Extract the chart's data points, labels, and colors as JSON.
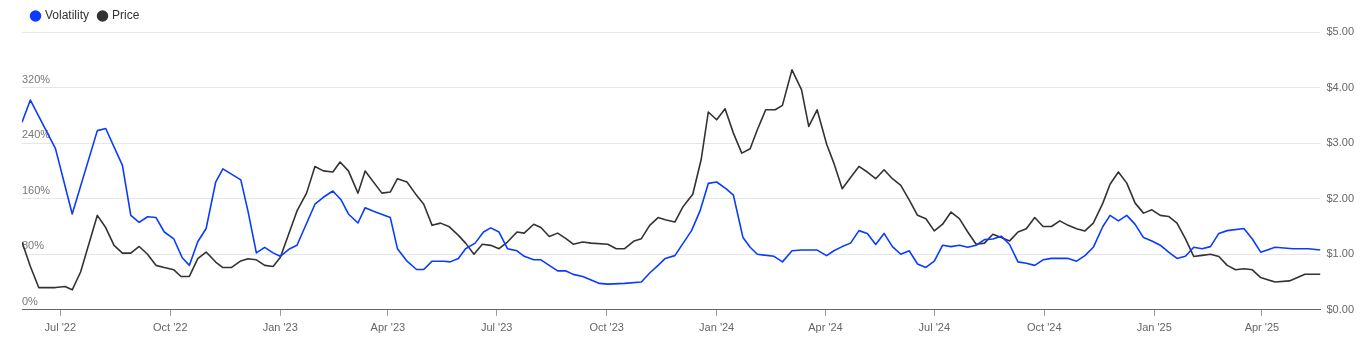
{
  "chart_data": {
    "type": "line",
    "xlim": [
      "2022-05-30",
      "2025-05-20"
    ],
    "xticks": [
      {
        "value": "2022-07-01",
        "label": "Jul '22"
      },
      {
        "value": "2022-10-01",
        "label": "Oct '22"
      },
      {
        "value": "2023-01-01",
        "label": "Jan '23"
      },
      {
        "value": "2023-04-01",
        "label": "Apr '23"
      },
      {
        "value": "2023-07-01",
        "label": "Jul '23"
      },
      {
        "value": "2023-10-01",
        "label": "Oct '23"
      },
      {
        "value": "2024-01-01",
        "label": "Jan '24"
      },
      {
        "value": "2024-04-01",
        "label": "Apr '24"
      },
      {
        "value": "2024-07-01",
        "label": "Jul '24"
      },
      {
        "value": "2024-10-01",
        "label": "Oct '24"
      },
      {
        "value": "2025-01-01",
        "label": "Jan '25"
      },
      {
        "value": "2025-04-01",
        "label": "Apr '25"
      }
    ],
    "ylim": [
      0,
      400
    ],
    "yticks": [
      {
        "value": 0,
        "label": "0%"
      },
      {
        "value": 80,
        "label": "80%"
      },
      {
        "value": 160,
        "label": "160%"
      },
      {
        "value": 240,
        "label": "240%"
      },
      {
        "value": 320,
        "label": "320%"
      }
    ],
    "y2lim": [
      0,
      5
    ],
    "y2ticks": [
      {
        "value": 0,
        "label": "$0.00"
      },
      {
        "value": 1,
        "label": "$1.00"
      },
      {
        "value": 2,
        "label": "$2.00"
      },
      {
        "value": 3,
        "label": "$3.00"
      },
      {
        "value": 4,
        "label": "$4.00"
      },
      {
        "value": 5,
        "label": "$5.00"
      }
    ],
    "grid": "y",
    "legend": "top left",
    "marker": "none",
    "line_style": "solid",
    "series": [
      {
        "name": "Volatility",
        "color": "#0a3cff",
        "x": [
          "2022-05-30",
          "2022-06-06",
          "2022-06-27",
          "2022-07-11",
          "2022-08-01",
          "2022-08-08",
          "2022-08-22",
          "2022-08-29",
          "2022-09-05",
          "2022-09-12",
          "2022-09-19",
          "2022-09-26",
          "2022-10-04",
          "2022-10-11",
          "2022-10-17",
          "2022-10-24",
          "2022-10-31",
          "2022-11-08",
          "2022-11-14",
          "2022-11-29",
          "2022-12-05",
          "2022-12-12",
          "2022-12-19",
          "2022-12-26",
          "2023-01-01",
          "2023-01-09",
          "2023-01-15",
          "2023-01-30",
          "2023-02-06",
          "2023-02-14",
          "2023-02-21",
          "2023-02-27",
          "2023-03-07",
          "2023-03-13",
          "2023-03-20",
          "2023-04-03",
          "2023-04-09",
          "2023-04-17",
          "2023-04-25",
          "2023-05-01",
          "2023-05-08",
          "2023-05-18",
          "2023-05-23",
          "2023-05-30",
          "2023-06-05",
          "2023-06-13",
          "2023-06-20",
          "2023-06-26",
          "2023-07-03",
          "2023-07-10",
          "2023-07-18",
          "2023-07-24",
          "2023-08-01",
          "2023-08-07",
          "2023-08-14",
          "2023-08-21",
          "2023-08-28",
          "2023-09-03",
          "2023-09-11",
          "2023-09-18",
          "2023-09-25",
          "2023-10-02",
          "2023-10-16",
          "2023-10-30",
          "2023-11-06",
          "2023-11-13",
          "2023-11-19",
          "2023-11-27",
          "2023-12-04",
          "2023-12-11",
          "2023-12-18",
          "2023-12-25",
          "2024-01-01",
          "2024-01-09",
          "2024-01-15",
          "2024-01-23",
          "2024-01-29",
          "2024-02-04",
          "2024-02-18",
          "2024-02-25",
          "2024-03-04",
          "2024-03-12",
          "2024-03-25",
          "2024-04-02",
          "2024-04-08",
          "2024-04-15",
          "2024-04-22",
          "2024-04-29",
          "2024-05-06",
          "2024-05-13",
          "2024-05-20",
          "2024-05-27",
          "2024-06-03",
          "2024-06-10",
          "2024-06-17",
          "2024-06-24",
          "2024-07-01",
          "2024-07-08",
          "2024-07-15",
          "2024-07-22",
          "2024-07-29",
          "2024-08-05",
          "2024-08-12",
          "2024-08-19",
          "2024-08-26",
          "2024-09-02",
          "2024-09-09",
          "2024-09-16",
          "2024-09-23",
          "2024-09-30",
          "2024-10-07",
          "2024-10-21",
          "2024-10-28",
          "2024-11-04",
          "2024-11-11",
          "2024-11-19",
          "2024-11-25",
          "2024-12-02",
          "2024-12-09",
          "2024-12-16",
          "2024-12-23",
          "2024-12-30",
          "2025-01-06",
          "2025-01-13",
          "2025-01-20",
          "2025-01-27",
          "2025-02-03",
          "2025-02-10",
          "2025-02-17",
          "2025-02-24",
          "2025-03-03",
          "2025-03-17",
          "2025-03-24",
          "2025-03-31",
          "2025-04-12",
          "2025-04-27",
          "2025-05-10",
          "2025-05-20"
        ],
        "values": [
          270,
          302,
          232,
          138,
          258,
          261,
          208,
          136,
          126,
          134,
          133,
          112,
          102,
          75,
          64,
          98,
          117,
          184,
          203,
          187,
          142,
          82,
          90,
          82,
          77,
          88,
          93,
          152,
          162,
          171,
          158,
          138,
          125,
          147,
          142,
          133,
          88,
          70,
          58,
          58,
          70,
          70,
          69,
          74,
          88,
          96,
          112,
          118,
          112,
          88,
          85,
          77,
          72,
          72,
          64,
          56,
          56,
          51,
          48,
          43,
          38,
          37,
          38,
          40,
          53,
          64,
          74,
          78,
          96,
          114,
          142,
          182,
          184,
          174,
          165,
          104,
          90,
          80,
          77,
          69,
          85,
          86,
          86,
          78,
          85,
          91,
          96,
          114,
          110,
          94,
          110,
          91,
          80,
          85,
          66,
          61,
          70,
          93,
          91,
          93,
          90,
          93,
          101,
          102,
          106,
          94,
          69,
          67,
          64,
          72,
          74,
          74,
          70,
          78,
          90,
          120,
          136,
          128,
          136,
          123,
          104,
          99,
          93,
          83,
          74,
          77,
          90,
          88,
          91,
          110,
          114,
          117,
          102,
          83,
          90,
          88,
          88,
          86
        ]
      },
      {
        "name": "Price",
        "color": "#333333",
        "axis": "y2",
        "x": [
          "2022-05-30",
          "2022-06-06",
          "2022-06-13",
          "2022-06-27",
          "2022-07-05",
          "2022-07-11",
          "2022-07-18",
          "2022-08-01",
          "2022-08-08",
          "2022-08-15",
          "2022-08-22",
          "2022-08-29",
          "2022-09-05",
          "2022-09-12",
          "2022-09-19",
          "2022-09-26",
          "2022-10-04",
          "2022-10-10",
          "2022-10-17",
          "2022-10-24",
          "2022-10-31",
          "2022-11-08",
          "2022-11-14",
          "2022-11-21",
          "2022-11-29",
          "2022-12-05",
          "2022-12-12",
          "2022-12-19",
          "2022-12-26",
          "2023-01-01",
          "2023-01-15",
          "2023-01-23",
          "2023-01-30",
          "2023-02-06",
          "2023-02-14",
          "2023-02-20",
          "2023-02-27",
          "2023-03-07",
          "2023-03-13",
          "2023-03-27",
          "2023-04-03",
          "2023-04-09",
          "2023-04-17",
          "2023-04-25",
          "2023-05-01",
          "2023-05-08",
          "2023-05-15",
          "2023-05-22",
          "2023-05-30",
          "2023-06-05",
          "2023-06-12",
          "2023-06-19",
          "2023-06-26",
          "2023-07-03",
          "2023-07-10",
          "2023-07-18",
          "2023-07-24",
          "2023-08-01",
          "2023-08-07",
          "2023-08-14",
          "2023-08-21",
          "2023-08-28",
          "2023-09-03",
          "2023-09-11",
          "2023-09-18",
          "2023-10-02",
          "2023-10-09",
          "2023-10-16",
          "2023-10-24",
          "2023-10-30",
          "2023-11-06",
          "2023-11-13",
          "2023-11-19",
          "2023-11-27",
          "2023-12-04",
          "2023-12-12",
          "2023-12-19",
          "2023-12-25",
          "2024-01-01",
          "2024-01-08",
          "2024-01-15",
          "2024-01-22",
          "2024-01-29",
          "2024-02-04",
          "2024-02-11",
          "2024-02-19",
          "2024-02-25",
          "2024-03-04",
          "2024-03-12",
          "2024-03-18",
          "2024-03-25",
          "2024-04-02",
          "2024-04-08",
          "2024-04-15",
          "2024-04-22",
          "2024-04-29",
          "2024-05-06",
          "2024-05-13",
          "2024-05-20",
          "2024-05-27",
          "2024-06-03",
          "2024-06-10",
          "2024-06-17",
          "2024-06-24",
          "2024-07-01",
          "2024-07-08",
          "2024-07-15",
          "2024-07-22",
          "2024-07-29",
          "2024-08-05",
          "2024-08-12",
          "2024-08-19",
          "2024-08-26",
          "2024-09-02",
          "2024-09-09",
          "2024-09-16",
          "2024-09-23",
          "2024-09-30",
          "2024-10-07",
          "2024-10-14",
          "2024-10-21",
          "2024-10-28",
          "2024-11-04",
          "2024-11-11",
          "2024-11-19",
          "2024-11-25",
          "2024-12-02",
          "2024-12-09",
          "2024-12-16",
          "2024-12-23",
          "2024-12-30",
          "2025-01-06",
          "2025-01-13",
          "2025-01-20",
          "2025-01-27",
          "2025-02-03",
          "2025-02-10",
          "2025-02-17",
          "2025-02-24",
          "2025-03-03",
          "2025-03-10",
          "2025-03-17",
          "2025-03-24",
          "2025-03-31",
          "2025-04-12",
          "2025-04-24",
          "2025-05-07",
          "2025-05-20"
        ],
        "values": [
          1.22,
          0.78,
          0.4,
          0.4,
          0.42,
          0.36,
          0.68,
          1.7,
          1.48,
          1.16,
          1.02,
          1.02,
          1.14,
          1.0,
          0.8,
          0.76,
          0.72,
          0.6,
          0.6,
          0.92,
          1.04,
          0.86,
          0.76,
          0.76,
          0.88,
          0.92,
          0.9,
          0.8,
          0.78,
          0.94,
          1.78,
          2.1,
          2.58,
          2.5,
          2.48,
          2.66,
          2.5,
          2.1,
          2.5,
          2.1,
          2.12,
          2.36,
          2.3,
          2.06,
          1.9,
          1.52,
          1.56,
          1.5,
          1.34,
          1.2,
          1.0,
          1.18,
          1.16,
          1.1,
          1.22,
          1.4,
          1.38,
          1.54,
          1.48,
          1.32,
          1.38,
          1.28,
          1.18,
          1.22,
          1.2,
          1.18,
          1.1,
          1.1,
          1.24,
          1.28,
          1.52,
          1.66,
          1.62,
          1.58,
          1.86,
          2.08,
          2.7,
          3.56,
          3.42,
          3.62,
          3.18,
          2.82,
          2.9,
          3.24,
          3.6,
          3.6,
          3.68,
          4.32,
          3.96,
          3.3,
          3.6,
          2.98,
          2.64,
          2.18,
          2.38,
          2.58,
          2.48,
          2.36,
          2.52,
          2.36,
          2.24,
          1.98,
          1.7,
          1.64,
          1.42,
          1.54,
          1.76,
          1.64,
          1.4,
          1.18,
          1.2,
          1.36,
          1.3,
          1.24,
          1.4,
          1.46,
          1.66,
          1.5,
          1.5,
          1.6,
          1.52,
          1.46,
          1.42,
          1.56,
          1.92,
          2.26,
          2.48,
          2.28,
          1.92,
          1.74,
          1.8,
          1.7,
          1.68,
          1.56,
          1.28,
          0.96,
          0.98,
          1.0,
          0.96,
          0.8,
          0.72,
          0.74,
          0.72,
          0.58,
          0.5,
          0.52,
          0.64,
          0.64
        ]
      }
    ]
  }
}
